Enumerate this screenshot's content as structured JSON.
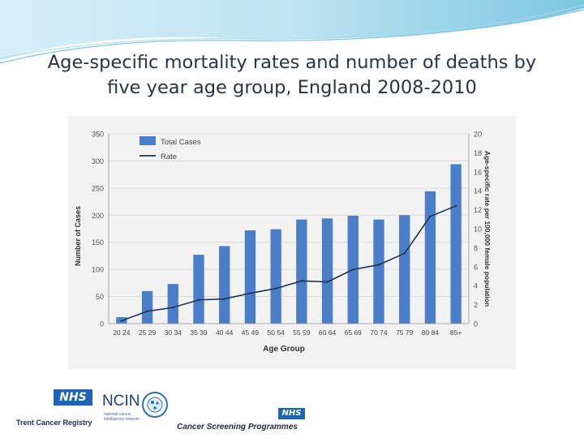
{
  "slide": {
    "title_line1": "Age-specific mortality rates and number of deaths by",
    "title_line2": "five year age group, England 2008-2010"
  },
  "colors": {
    "bar": "#4a7ec8",
    "line": "#1f3550",
    "header_wave": "#5cb8d6"
  },
  "chart_data": {
    "type": "bar",
    "categories": [
      "20 24",
      "25 29",
      "30 34",
      "35 39",
      "40 44",
      "45 49",
      "50 54",
      "55 59",
      "60 64",
      "65 69",
      "70 74",
      "75 79",
      "80 84",
      "85+"
    ],
    "series": [
      {
        "name": "Total Cases",
        "type": "bar",
        "axis": "left",
        "values": [
          12,
          60,
          73,
          127,
          143,
          172,
          174,
          192,
          194,
          199,
          192,
          200,
          244,
          294
        ]
      },
      {
        "name": "Rate",
        "type": "line",
        "axis": "right",
        "values": [
          0.3,
          1.3,
          1.7,
          2.5,
          2.6,
          3.2,
          3.7,
          4.5,
          4.4,
          5.7,
          6.2,
          7.4,
          11.3,
          12.4
        ]
      }
    ],
    "xlabel": "Age Group",
    "ylabel": "Number of Cases",
    "y2label": "Age-specific rate per 100,000 female population",
    "ylim": [
      0,
      350
    ],
    "y2lim": [
      0,
      20
    ],
    "yticks": [
      0,
      50,
      100,
      150,
      200,
      250,
      300,
      350
    ],
    "y2ticks": [
      0,
      2,
      4,
      6,
      8,
      10,
      12,
      14,
      16,
      18,
      20
    ],
    "legend_position": "top-left",
    "grid": "horizontal"
  },
  "logos": {
    "nhs_left": "NHS",
    "trent": "Trent Cancer Registry",
    "ncin": "NCIN",
    "ncin_sub": "national cancer intelligence network",
    "nhs_right": "NHS",
    "screening": "Cancer Screening Programmes"
  }
}
